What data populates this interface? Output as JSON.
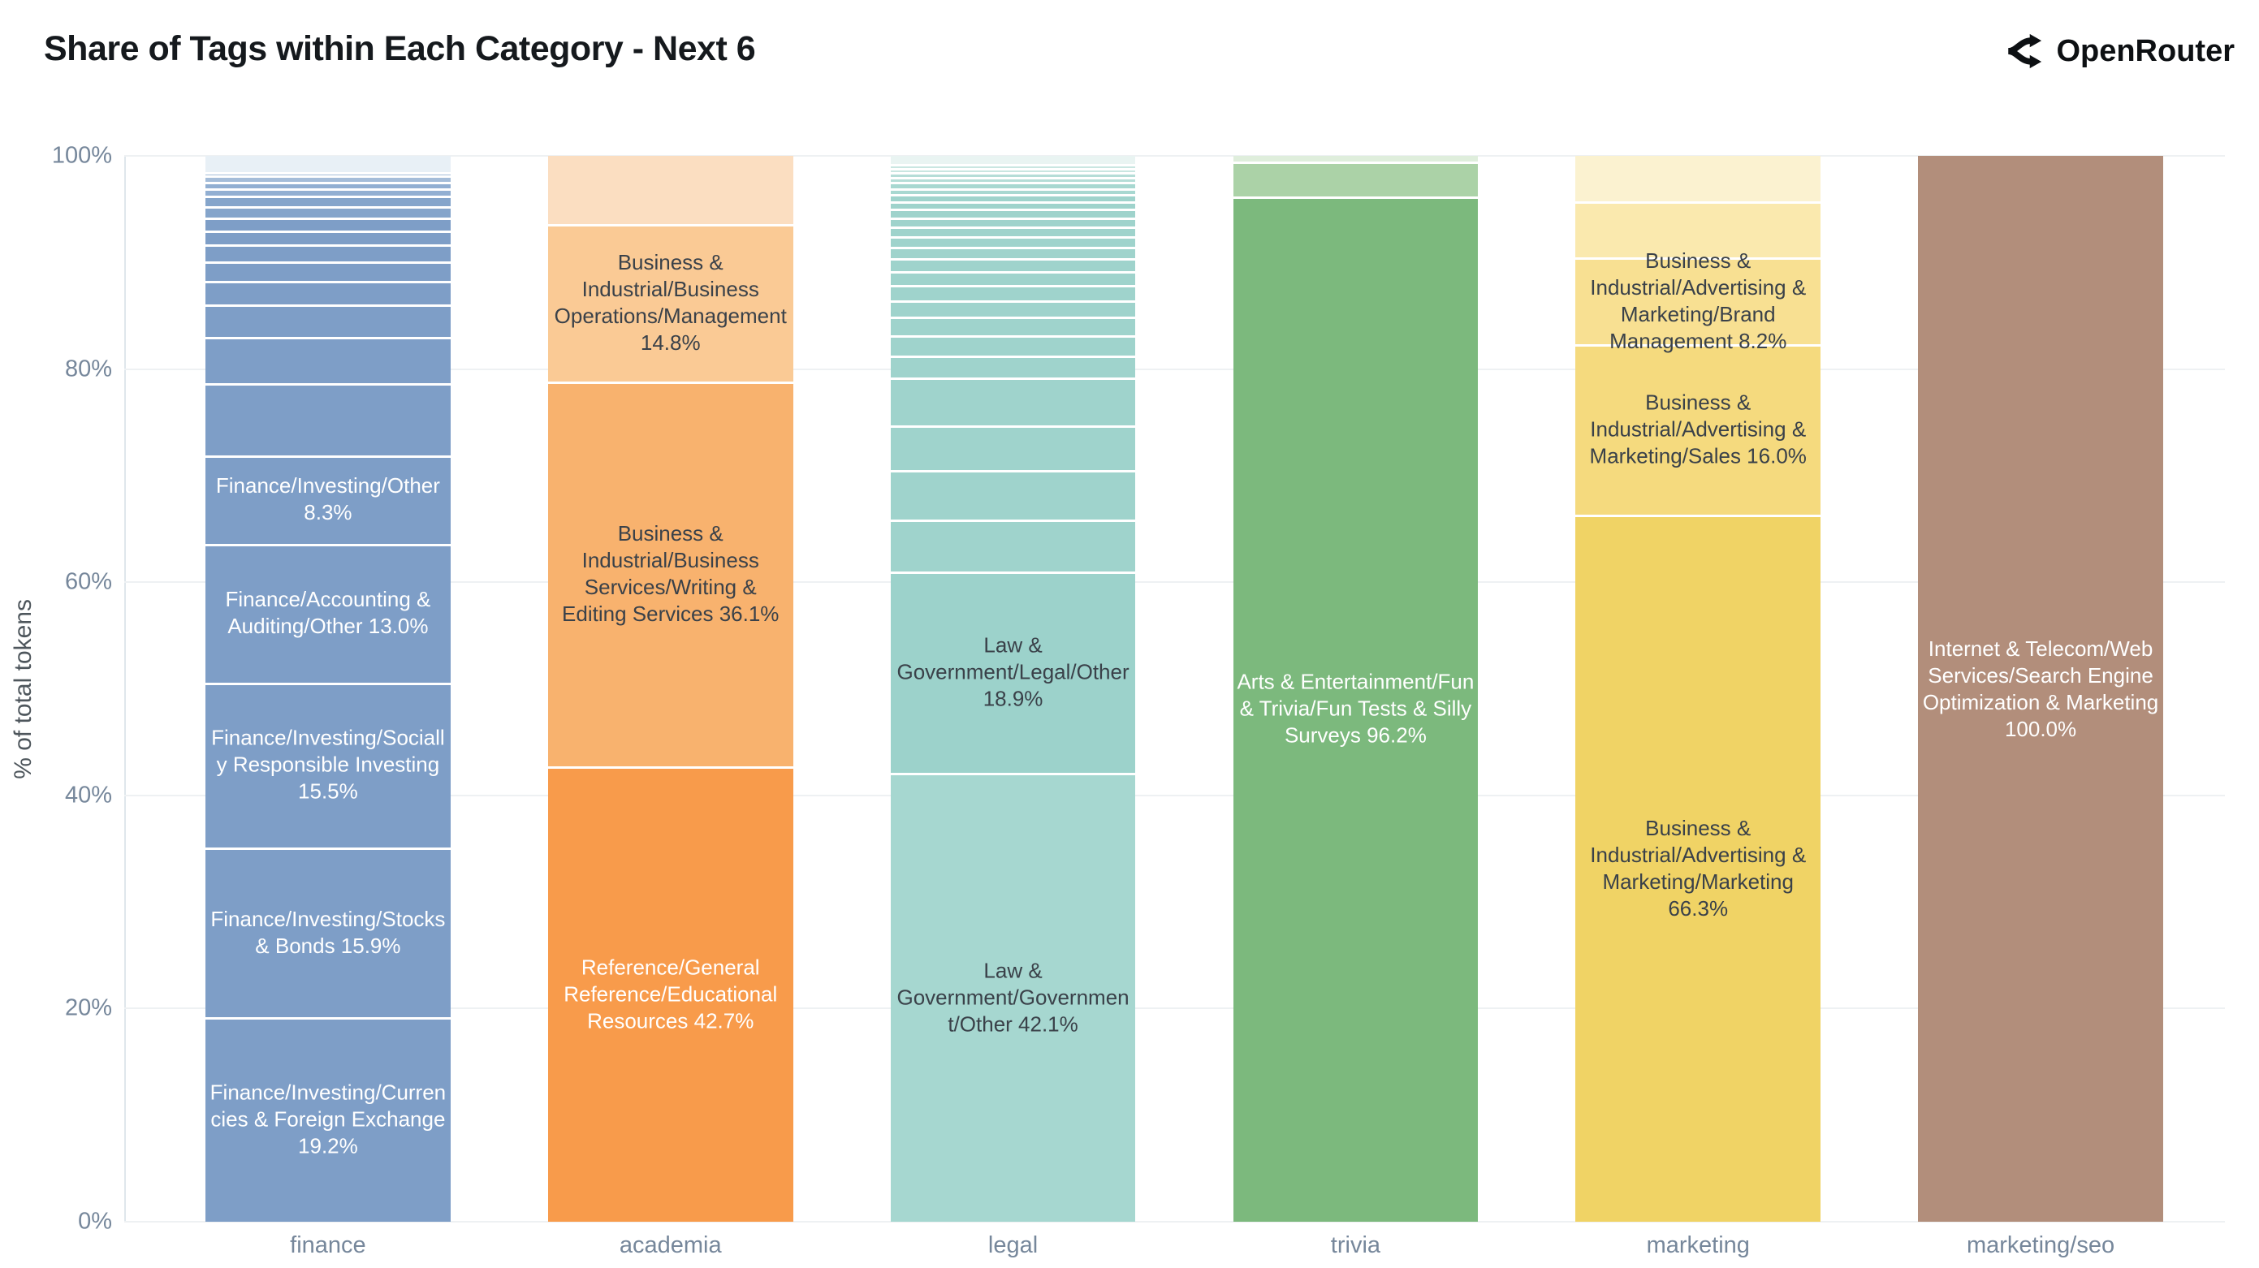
{
  "header": {
    "brand": "OpenRouter"
  },
  "chart_data": {
    "type": "bar",
    "variant": "100%-stacked-vertical",
    "title": "Share of Tags within Each Category - Next 6",
    "xlabel": "",
    "ylabel": "% of total tokens",
    "ylim": [
      0,
      100
    ],
    "y_ticks": [
      "0%",
      "20%",
      "40%",
      "60%",
      "80%",
      "100%"
    ],
    "grid": true,
    "legend": false,
    "label_text_dark": "#3a4149",
    "label_text_light": "#ffffff",
    "categories": [
      "finance",
      "academia",
      "legal",
      "trivia",
      "marketing",
      "marketing/seo"
    ],
    "bars": [
      {
        "category": "finance",
        "segments": [
          {
            "label": "Finance/Investing/Currencies & Foreign Exchange",
            "value": 19.2,
            "color": "#7E9EC7",
            "label_color": "#ffffff"
          },
          {
            "label": "Finance/Investing/Stocks & Bonds",
            "value": 15.9,
            "color": "#7E9EC7",
            "label_color": "#ffffff"
          },
          {
            "label": "Finance/Investing/Socially Responsible Investing",
            "value": 15.5,
            "color": "#7E9EC7",
            "label_color": "#ffffff"
          },
          {
            "label": "Finance/Accounting & Auditing/Other",
            "value": 13.0,
            "color": "#7E9EC7",
            "label_color": "#ffffff"
          },
          {
            "label": "Finance/Investing/Other",
            "value": 8.3,
            "color": "#7E9EC7",
            "label_color": "#ffffff"
          },
          {
            "label": "",
            "value": 6.8,
            "color": "#7E9EC7"
          },
          {
            "label": "",
            "value": 4.3,
            "color": "#7E9EC7"
          },
          {
            "label": "",
            "value": 3.1,
            "color": "#7E9EC7"
          },
          {
            "label": "",
            "value": 2.2,
            "color": "#7E9EC7"
          },
          {
            "label": "",
            "value": 1.8,
            "color": "#7E9EC7"
          },
          {
            "label": "",
            "value": 1.6,
            "color": "#7E9EC7"
          },
          {
            "label": "",
            "value": 1.3,
            "color": "#7E9EC7"
          },
          {
            "label": "",
            "value": 1.2,
            "color": "#7E9EC7"
          },
          {
            "label": "",
            "value": 1.1,
            "color": "#85A5CB"
          },
          {
            "label": "",
            "value": 1.0,
            "color": "#85A5CB"
          },
          {
            "label": "",
            "value": 0.7,
            "color": "#92AFD2"
          },
          {
            "label": "",
            "value": 0.6,
            "color": "#92AFD2"
          },
          {
            "label": "",
            "value": 0.6,
            "color": "#A5BDD9"
          },
          {
            "label": "",
            "value": 0.3,
            "color": "#A5BDD9"
          },
          {
            "label": "",
            "value": 1.5,
            "color": "#E8F0F6"
          }
        ]
      },
      {
        "category": "academia",
        "segments": [
          {
            "label": "Reference/General Reference/Educational Resources",
            "value": 42.7,
            "color": "#F89B4B",
            "label_color": "#ffffff"
          },
          {
            "label": "Business & Industrial/Business Services/Writing & Editing Services",
            "value": 36.1,
            "color": "#F8B26E",
            "label_color": "#3a4149"
          },
          {
            "label": "Business & Industrial/Business Operations/Management",
            "value": 14.8,
            "color": "#FACA95",
            "label_color": "#3a4149"
          },
          {
            "label": "",
            "value": 6.4,
            "color": "#FBDEC1"
          }
        ]
      },
      {
        "category": "legal",
        "segments": [
          {
            "label": "Law & Government/Government/Other",
            "value": 42.1,
            "color": "#A6D7D0",
            "label_color": "#3a4149"
          },
          {
            "label": "Law & Government/Legal/Other",
            "value": 18.9,
            "color": "#9CD2CB",
            "label_color": "#3a4149"
          },
          {
            "label": "",
            "value": 4.9,
            "color": "#9FD3CC"
          },
          {
            "label": "",
            "value": 4.6,
            "color": "#9FD3CC"
          },
          {
            "label": "",
            "value": 4.2,
            "color": "#9FD3CC"
          },
          {
            "label": "",
            "value": 4.5,
            "color": "#9FD3CC"
          },
          {
            "label": "",
            "value": 2.1,
            "color": "#9FD3CC"
          },
          {
            "label": "",
            "value": 1.9,
            "color": "#9FD3CC"
          },
          {
            "label": "",
            "value": 1.7,
            "color": "#9FD3CC"
          },
          {
            "label": "",
            "value": 1.55,
            "color": "#9FD3CC"
          },
          {
            "label": "",
            "value": 1.45,
            "color": "#9FD3CC"
          },
          {
            "label": "",
            "value": 1.3,
            "color": "#9FD3CC"
          },
          {
            "label": "",
            "value": 1.2,
            "color": "#9FD3CC"
          },
          {
            "label": "",
            "value": 1.1,
            "color": "#9FD3CC"
          },
          {
            "label": "",
            "value": 1.0,
            "color": "#9FD3CC"
          },
          {
            "label": "",
            "value": 0.9,
            "color": "#9FD3CC"
          },
          {
            "label": "",
            "value": 0.85,
            "color": "#9FD3CC"
          },
          {
            "label": "",
            "value": 0.8,
            "color": "#9FD3CC"
          },
          {
            "label": "",
            "value": 0.7,
            "color": "#9FD3CC"
          },
          {
            "label": "",
            "value": 0.65,
            "color": "#9FD3CC"
          },
          {
            "label": "",
            "value": 0.6,
            "color": "#A8D8D1"
          },
          {
            "label": "",
            "value": 0.55,
            "color": "#A8D8D1"
          },
          {
            "label": "",
            "value": 0.5,
            "color": "#B5DDD7"
          },
          {
            "label": "",
            "value": 0.45,
            "color": "#B5DDD7"
          },
          {
            "label": "",
            "value": 0.4,
            "color": "#C9E6E1"
          },
          {
            "label": "",
            "value": 0.35,
            "color": "#C9E6E1"
          },
          {
            "label": "",
            "value": 0.75,
            "color": "#E9F4F2"
          }
        ]
      },
      {
        "category": "trivia",
        "segments": [
          {
            "label": "Arts & Entertainment/Fun & Trivia/Fun Tests & Silly Surveys",
            "value": 96.2,
            "color": "#7CB97D",
            "label_color": "#ffffff"
          },
          {
            "label": "",
            "value": 3.3,
            "color": "#ABD2A7"
          },
          {
            "label": "",
            "value": 0.5,
            "color": "#DFEEDC"
          }
        ]
      },
      {
        "category": "marketing",
        "segments": [
          {
            "label": "Business & Industrial/Advertising & Marketing/Marketing",
            "value": 66.3,
            "color": "#F0D365",
            "label_color": "#3a4149"
          },
          {
            "label": "Business & Industrial/Advertising & Marketing/Sales",
            "value": 16.0,
            "color": "#F5DA7E",
            "label_color": "#3a4149"
          },
          {
            "label": "Business & Industrial/Advertising & Marketing/Brand Management",
            "value": 8.2,
            "color": "#F8E092",
            "label_color": "#3a4149"
          },
          {
            "label": "",
            "value": 5.2,
            "color": "#FAE9AE"
          },
          {
            "label": "",
            "value": 4.3,
            "color": "#FBF2D0"
          }
        ]
      },
      {
        "category": "marketing/seo",
        "segments": [
          {
            "label": "Internet & Telecom/Web Services/Search Engine Optimization & Marketing",
            "value": 100.0,
            "color": "#B28E7B",
            "label_color": "#ffffff"
          }
        ]
      }
    ]
  }
}
